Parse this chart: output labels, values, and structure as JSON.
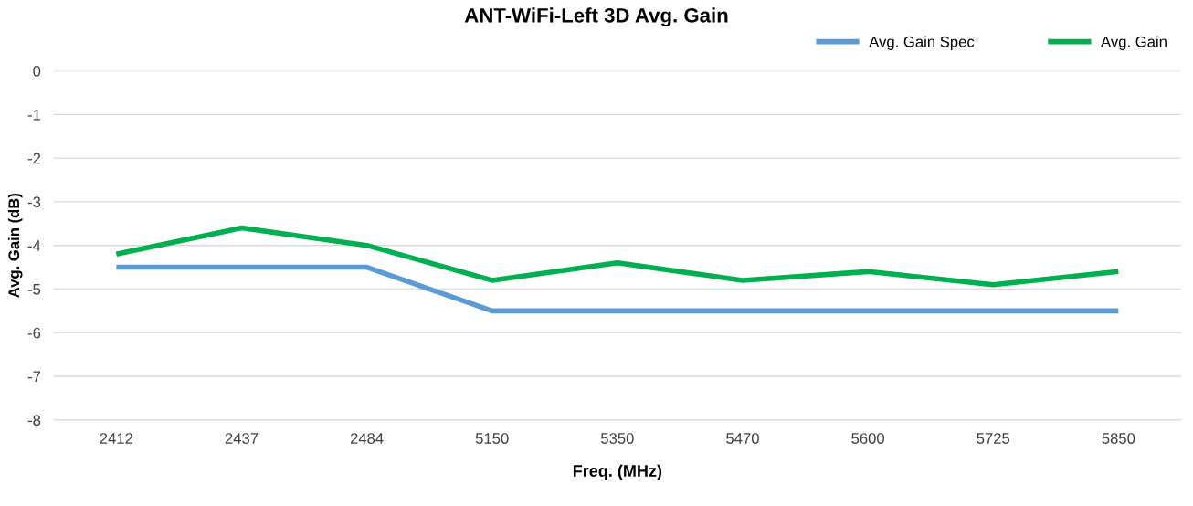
{
  "chart_data": {
    "type": "line",
    "title": "ANT-WiFi-Left 3D Avg. Gain",
    "xlabel": "Freq. (MHz)",
    "ylabel": "Avg. Gain (dB)",
    "categories": [
      "2412",
      "2437",
      "2484",
      "5150",
      "5350",
      "5470",
      "5600",
      "5725",
      "5850"
    ],
    "series": [
      {
        "name": "Avg. Gain Spec",
        "color": "#5b9bd5",
        "values": [
          -4.5,
          -4.5,
          -4.5,
          -5.5,
          -5.5,
          -5.5,
          -5.5,
          -5.5,
          -5.5
        ]
      },
      {
        "name": "Avg. Gain",
        "color": "#00b050",
        "values": [
          -4.2,
          -3.6,
          -4.0,
          -4.8,
          -4.4,
          -4.8,
          -4.6,
          -4.9,
          -4.6
        ]
      }
    ],
    "ylim": [
      -8,
      0
    ],
    "yticks": [
      0,
      -1,
      -2,
      -3,
      -4,
      -5,
      -6,
      -7,
      -8
    ],
    "grid": "y",
    "legend": "top right",
    "marker": "none",
    "line_style": "solid"
  }
}
